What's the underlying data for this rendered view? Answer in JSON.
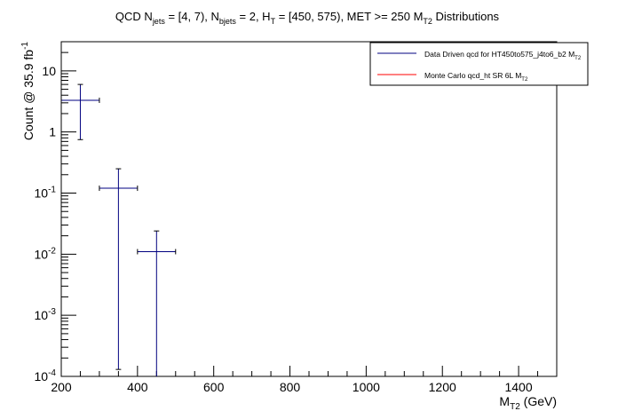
{
  "chart_data": {
    "type": "scatter",
    "title": {
      "parts": [
        {
          "t": "QCD N",
          "sub": false
        },
        {
          "t": "jets",
          "sub": true
        },
        {
          "t": " = [4, 7), N",
          "sub": false
        },
        {
          "t": "bjets",
          "sub": true
        },
        {
          "t": " = 2, H",
          "sub": false
        },
        {
          "t": "T",
          "sub": true
        },
        {
          "t": " = [450, 575), MET >= 250 M",
          "sub": false
        },
        {
          "t": "T2",
          "sub": true
        },
        {
          "t": " Distributions",
          "sub": false
        }
      ]
    },
    "xlabel": {
      "main": "M",
      "sub": "T2",
      "rest": " (GeV)"
    },
    "ylabel": {
      "main": "Count @ 35.9 fb",
      "sup": "-1"
    },
    "xlim": [
      200,
      1500
    ],
    "ylim": [
      0.0001,
      30
    ],
    "yscale": "log",
    "x_ticks": [
      200,
      400,
      600,
      800,
      1000,
      1200,
      1400
    ],
    "y_ticks": [
      {
        "value": 0.0001,
        "base": "10",
        "exp": "-4"
      },
      {
        "value": 0.001,
        "base": "10",
        "exp": "-3"
      },
      {
        "value": 0.01,
        "base": "10",
        "exp": "-2"
      },
      {
        "value": 0.1,
        "base": "10",
        "exp": "-1"
      },
      {
        "value": 1,
        "base": "1",
        "exp": ""
      },
      {
        "value": 10,
        "base": "10",
        "exp": ""
      }
    ],
    "series": [
      {
        "name": "Data Driven qcd for HT450to575_j4to6_b2 M_T2",
        "legend_main": "Data Driven qcd for HT450to575_j4to6_b2 M",
        "legend_sub": "T2",
        "color": "#000080",
        "points": [
          {
            "x": 250,
            "xlo": 200,
            "xhi": 300,
            "y": 3.3,
            "ylo": 0.75,
            "yhi": 6.0
          },
          {
            "x": 350,
            "xlo": 300,
            "xhi": 400,
            "y": 0.12,
            "ylo": 0.00013,
            "yhi": 0.25
          },
          {
            "x": 450,
            "xlo": 400,
            "xhi": 500,
            "y": 0.011,
            "ylo": 0.0001,
            "yhi": 0.024
          }
        ]
      },
      {
        "name": "Monte Carlo qcd_ht SR 6L M_T2",
        "legend_main": "Monte Carlo qcd_ht SR 6L M",
        "legend_sub": "T2",
        "color": "#ff0000",
        "points": []
      }
    ],
    "legend_position": "top-right",
    "grid": false
  }
}
